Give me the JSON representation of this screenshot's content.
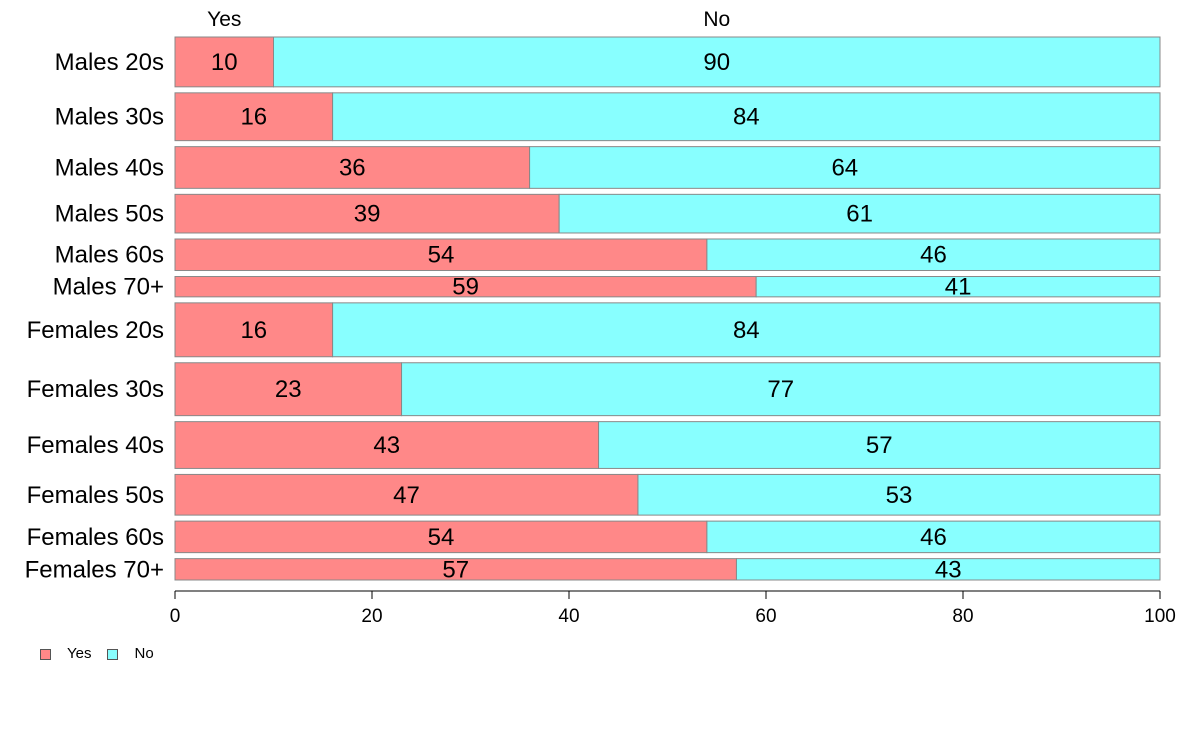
{
  "chart_data": {
    "type": "bar",
    "orientation": "horizontal",
    "stacked": true,
    "categories": [
      "Males 20s",
      "Males 30s",
      "Males 40s",
      "Males 50s",
      "Males 60s",
      "Males 70+",
      "Females 20s",
      "Females 30s",
      "Females 40s",
      "Females 50s",
      "Females 60s",
      "Females 70+"
    ],
    "series": [
      {
        "name": "Yes",
        "color": "#FF8888",
        "values": [
          10,
          16,
          36,
          39,
          54,
          59,
          16,
          23,
          43,
          47,
          54,
          57
        ]
      },
      {
        "name": "No",
        "color": "#88FFFF",
        "values": [
          90,
          84,
          64,
          61,
          46,
          41,
          84,
          77,
          57,
          53,
          46,
          43
        ]
      }
    ],
    "relative_bar_heights": [
      49,
      47,
      41,
      38,
      31,
      20,
      53,
      52,
      46,
      40,
      31,
      21
    ],
    "xlim": [
      0,
      100
    ],
    "xticks": [
      "0",
      "20",
      "40",
      "60",
      "80",
      "100"
    ],
    "top_labels": [
      "Yes",
      "No"
    ],
    "xlabel": "",
    "ylabel": "",
    "grid": false,
    "legend": {
      "position": "bottom-left",
      "items": [
        "Yes",
        "No"
      ]
    }
  }
}
